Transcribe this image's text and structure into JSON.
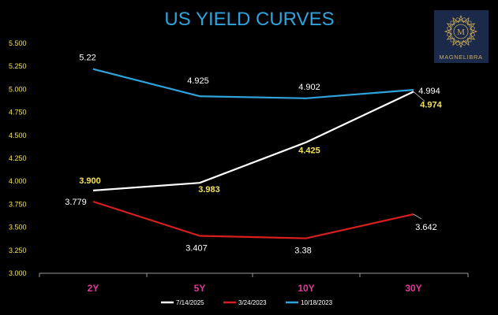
{
  "chart_data": {
    "type": "line",
    "title": "US YIELD CURVES",
    "categories": [
      "2Y",
      "5Y",
      "10Y",
      "30Y"
    ],
    "ylim": [
      3.0,
      5.5
    ],
    "yticks": [
      "3.000",
      "3.250",
      "3.500",
      "3.750",
      "4.000",
      "4.250",
      "4.500",
      "4.750",
      "5.000",
      "5.250",
      "5.500"
    ],
    "grid": false,
    "legend_position": "bottom",
    "series": [
      {
        "name": "7/14/2025",
        "color": "#ffffff",
        "values": [
          3.9,
          3.983,
          4.425,
          4.974
        ],
        "labels": [
          "3.900",
          "3.983",
          "4.425",
          "4.974"
        ],
        "label_color": "#f2e35a"
      },
      {
        "name": "3/24/2023",
        "color": "#d81e1e",
        "values": [
          3.779,
          3.407,
          3.38,
          3.642
        ],
        "labels": [
          "3.779",
          "3.407",
          "3.38",
          "3.642"
        ],
        "label_color": "#ffffff"
      },
      {
        "name": "10/18/2023",
        "color": "#2ea3dc",
        "values": [
          5.22,
          4.925,
          4.902,
          4.994
        ],
        "labels": [
          "5.22",
          "4.925",
          "4.902",
          "4.994"
        ],
        "label_color": "#ffffff"
      }
    ],
    "colors": {
      "title": "#2ea3dc",
      "ytick": "#f2e35a",
      "xtick": "#e0399b",
      "axis": "#9a9a9a",
      "legend_text": "#ffffff"
    }
  },
  "logo": {
    "text": "MAGNELIBRA",
    "monogram": "M",
    "gold": "#c9a85c",
    "background": "#1c2a4a"
  }
}
